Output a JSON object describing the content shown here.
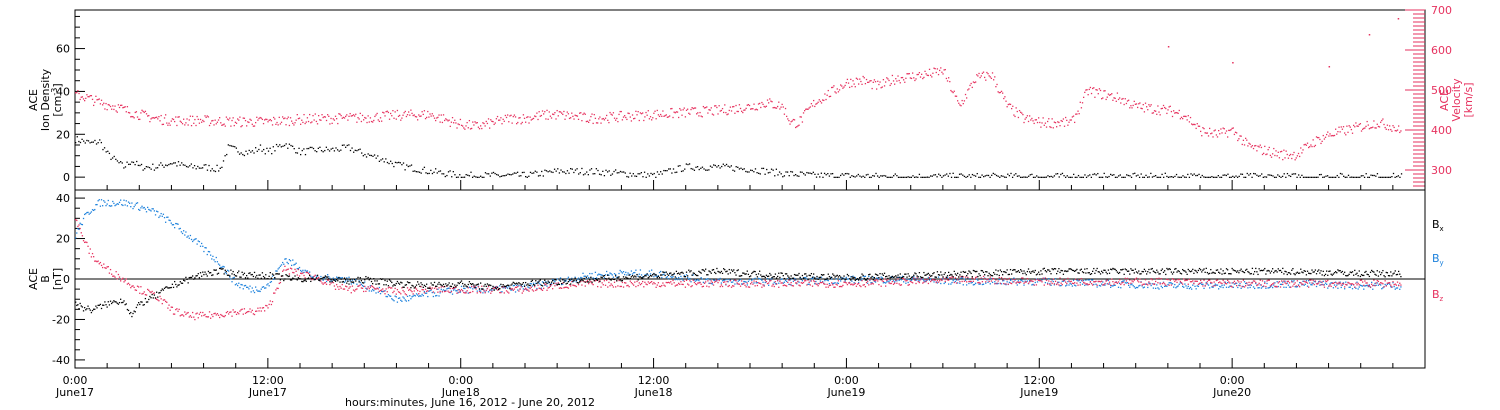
{
  "figure": {
    "x_axis_title": "hours:minutes, June 16, 2012 - June 20, 2012",
    "x_tick_times": [
      "0:00",
      "12:00",
      "0:00",
      "12:00",
      "0:00",
      "12:00",
      "0:00"
    ],
    "x_tick_dates": [
      "June17",
      "June17",
      "June18",
      "June18",
      "June19",
      "June19",
      "June20"
    ]
  },
  "colors": {
    "black": "#000000",
    "blue": "#1e82dc",
    "pink": "#e6325f"
  },
  "chart_data": [
    {
      "type": "scatter",
      "panel": "top",
      "title": "",
      "xlabel": "hours:minutes, June 16, 2012 - June 20, 2012",
      "x_unit": "hours since 2012-06-17 00:00",
      "xlim": [
        0,
        84
      ],
      "ylabel": "ACE Ion Density [cm-3]",
      "ylabel_lines": [
        "ACE",
        "Ion Density",
        "[cm",
        "-3",
        "]"
      ],
      "ylim": [
        -6,
        78
      ],
      "yticks": [
        0,
        20,
        40,
        60
      ],
      "y2label": "ACE Velocity [km/s]",
      "y2label_lines": [
        "ACE",
        "Velocity",
        "[km/s]"
      ],
      "y2lim": [
        250,
        700
      ],
      "y2ticks": [
        300,
        400,
        500,
        600,
        700
      ],
      "grid": false,
      "series": [
        {
          "name": "Ion Density",
          "axis": "left",
          "color": "black",
          "x": [
            0,
            0.5,
            1,
            1.5,
            2,
            2.5,
            3,
            3.5,
            4,
            5,
            6,
            7,
            8,
            9,
            9.5,
            10,
            10.5,
            11,
            11.5,
            12,
            13,
            14,
            15,
            16,
            17,
            18,
            19,
            20,
            22,
            24,
            26,
            28,
            30,
            32,
            34,
            36,
            38,
            40,
            42,
            44,
            46,
            48,
            50,
            52,
            54,
            56,
            58,
            60,
            62,
            64,
            66,
            68,
            70,
            72,
            74,
            76,
            78,
            80,
            82.5
          ],
          "y": [
            18,
            17,
            16,
            17,
            11,
            8,
            5,
            8,
            5,
            5,
            7,
            5,
            5,
            4,
            14,
            13,
            12,
            12,
            14,
            12,
            16,
            12,
            13,
            13,
            14,
            11,
            9,
            6,
            3,
            1,
            1,
            1,
            3,
            3,
            2,
            1,
            5,
            5,
            4,
            2,
            1,
            0.8,
            0.6,
            0.5,
            0.5,
            0.5,
            0.5,
            0.5,
            0.5,
            0.5,
            0.5,
            0.5,
            0.5,
            0.5,
            0.5,
            0.5,
            0.5,
            0.5,
            0.5
          ]
        },
        {
          "name": "Velocity",
          "axis": "right",
          "color": "pink",
          "x": [
            0,
            0.5,
            1,
            1.5,
            2,
            2.5,
            3,
            4,
            5,
            6,
            8,
            10,
            12,
            14,
            16,
            18,
            20,
            22,
            24,
            25,
            26,
            27,
            28,
            29,
            30,
            32,
            34,
            36,
            38,
            40,
            42,
            43,
            44,
            44.5,
            45,
            46,
            48,
            49,
            50,
            51,
            52,
            53,
            54,
            55,
            56,
            57,
            58,
            59,
            60,
            62,
            63,
            64,
            65,
            66,
            67,
            68,
            69,
            70,
            71,
            72,
            73,
            74,
            75,
            76,
            77,
            78,
            79,
            80,
            81,
            82,
            82.5
          ],
          "y": [
            490,
            485,
            478,
            470,
            465,
            460,
            452,
            440,
            430,
            425,
            425,
            422,
            422,
            428,
            430,
            432,
            438,
            440,
            415,
            410,
            420,
            430,
            430,
            438,
            440,
            430,
            435,
            440,
            445,
            450,
            460,
            470,
            460,
            420,
            420,
            470,
            520,
            525,
            510,
            530,
            535,
            540,
            550,
            460,
            530,
            540,
            460,
            430,
            420,
            420,
            500,
            490,
            480,
            460,
            455,
            450,
            440,
            400,
            390,
            400,
            360,
            350,
            340,
            340,
            370,
            390,
            400,
            410,
            420,
            410,
            395
          ]
        }
      ]
    },
    {
      "type": "scatter",
      "panel": "bottom",
      "title": "",
      "xlabel": "hours:minutes, June 16, 2012 - June 20, 2012",
      "x_unit": "hours since 2012-06-17 00:00",
      "xlim": [
        0,
        84
      ],
      "ylabel": "ACE B [nT]",
      "ylabel_lines": [
        "ACE",
        "B",
        "[nT]"
      ],
      "ylim": [
        -44,
        44
      ],
      "yticks": [
        -40,
        -20,
        0,
        20,
        40
      ],
      "zero_line": true,
      "grid": false,
      "legend_position": "right",
      "series": [
        {
          "name": "Bx",
          "legend_base": "B",
          "legend_sub": "x",
          "color": "black",
          "x": [
            0,
            0.5,
            1,
            2,
            3,
            3.5,
            4,
            5,
            6,
            7,
            8,
            9,
            10,
            11,
            12,
            13,
            14,
            15,
            16,
            17,
            18,
            20,
            22,
            24,
            26,
            28,
            30,
            32,
            34,
            36,
            38,
            40,
            44,
            48,
            52,
            56,
            60,
            64,
            68,
            72,
            76,
            80,
            82.5
          ],
          "y": [
            -12,
            -14,
            -15,
            -12,
            -10,
            -18,
            -12,
            -8,
            -3,
            0,
            3,
            4,
            3,
            2,
            2,
            1,
            0,
            1,
            0,
            -1,
            0,
            -2,
            -3,
            -2,
            -4,
            -2,
            -1,
            0,
            1,
            2,
            3,
            4,
            2,
            1,
            2,
            3,
            4,
            4,
            4,
            4,
            4,
            3,
            3
          ]
        },
        {
          "name": "By",
          "legend_base": "B",
          "legend_sub": "y",
          "color": "blue",
          "x": [
            0,
            0.5,
            1,
            1.5,
            2,
            3,
            4,
            5,
            6,
            7,
            8,
            9,
            10,
            11,
            12,
            13,
            14,
            15,
            16,
            17,
            18,
            19,
            20,
            21,
            22,
            24,
            26,
            28,
            30,
            32,
            34,
            36,
            38,
            40,
            44,
            48,
            52,
            56,
            60,
            64,
            68,
            72,
            76,
            80,
            82.5
          ],
          "y": [
            22,
            30,
            35,
            38,
            38,
            38,
            36,
            33,
            28,
            22,
            15,
            8,
            -2,
            -5,
            -3,
            10,
            6,
            0,
            1,
            0,
            -3,
            -6,
            -10,
            -9,
            -7,
            -5,
            -5,
            -4,
            -1,
            2,
            3,
            3,
            1,
            -1,
            -1,
            0,
            0,
            -1,
            -1,
            -2,
            -3,
            -3,
            -2,
            -3,
            -3
          ]
        },
        {
          "name": "Bz",
          "legend_base": "B",
          "legend_sub": "z",
          "color": "pink",
          "x": [
            0,
            0.5,
            1,
            1.5,
            2,
            3,
            4,
            5,
            6,
            7,
            8,
            9,
            10,
            11,
            12,
            13,
            14,
            15,
            16,
            17,
            18,
            20,
            22,
            24,
            26,
            28,
            30,
            32,
            34,
            36,
            38,
            40,
            44,
            48,
            52,
            56,
            60,
            64,
            68,
            72,
            76,
            80,
            82.5
          ],
          "y": [
            30,
            20,
            12,
            8,
            5,
            0,
            -5,
            -8,
            -15,
            -18,
            -18,
            -17,
            -16,
            -16,
            -14,
            5,
            3,
            1,
            -3,
            -5,
            -4,
            -6,
            -5,
            -5,
            -5,
            -5,
            -3,
            -2,
            -2,
            -2,
            -2,
            -2,
            -2,
            -2,
            -1,
            0,
            -1,
            -1,
            -1,
            -2,
            -2,
            -2,
            -2
          ]
        }
      ]
    }
  ]
}
